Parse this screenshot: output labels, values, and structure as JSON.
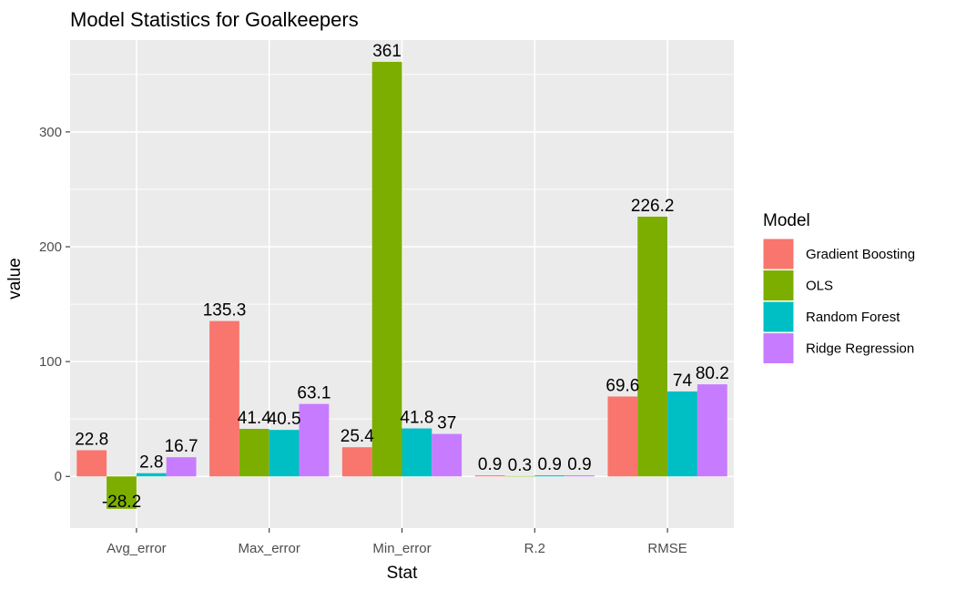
{
  "chart_data": {
    "type": "bar",
    "title": "Model Statistics for Goalkeepers",
    "xlabel": "Stat",
    "ylabel": "value",
    "categories": [
      "Avg_error",
      "Max_error",
      "Min_error",
      "R.2",
      "RMSE"
    ],
    "series": [
      {
        "name": "Gradient Boosting",
        "color": "#F8766D",
        "values": [
          22.8,
          135.3,
          25.4,
          0.9,
          69.6
        ],
        "labels": [
          "22.8",
          "135.3",
          "25.4",
          "0.9",
          "69.6"
        ]
      },
      {
        "name": "OLS",
        "color": "#7CAE00",
        "values": [
          -28.2,
          41.4,
          361,
          0.3,
          226.2
        ],
        "labels": [
          "-28.2",
          "41.4",
          "361",
          "0.3",
          "226.2"
        ]
      },
      {
        "name": "Random Forest",
        "color": "#00BFC4",
        "values": [
          2.8,
          40.5,
          41.8,
          0.9,
          74
        ],
        "labels": [
          "2.8",
          "40.5",
          "41.8",
          "0.9",
          "74"
        ]
      },
      {
        "name": "Ridge Regression",
        "color": "#C77CFF",
        "values": [
          16.7,
          63.1,
          37,
          0.9,
          80.2
        ],
        "labels": [
          "16.7",
          "63.1",
          "37",
          "0.9",
          "80.2"
        ]
      }
    ],
    "ylim": [
      -45,
      380
    ],
    "yticks": [
      0,
      100,
      200,
      300
    ],
    "ytick_labels": [
      "0",
      "100",
      "200",
      "300"
    ],
    "legend": {
      "title": "Model",
      "position": "right"
    },
    "grid": true,
    "panel_background": "#EBEBEB"
  }
}
